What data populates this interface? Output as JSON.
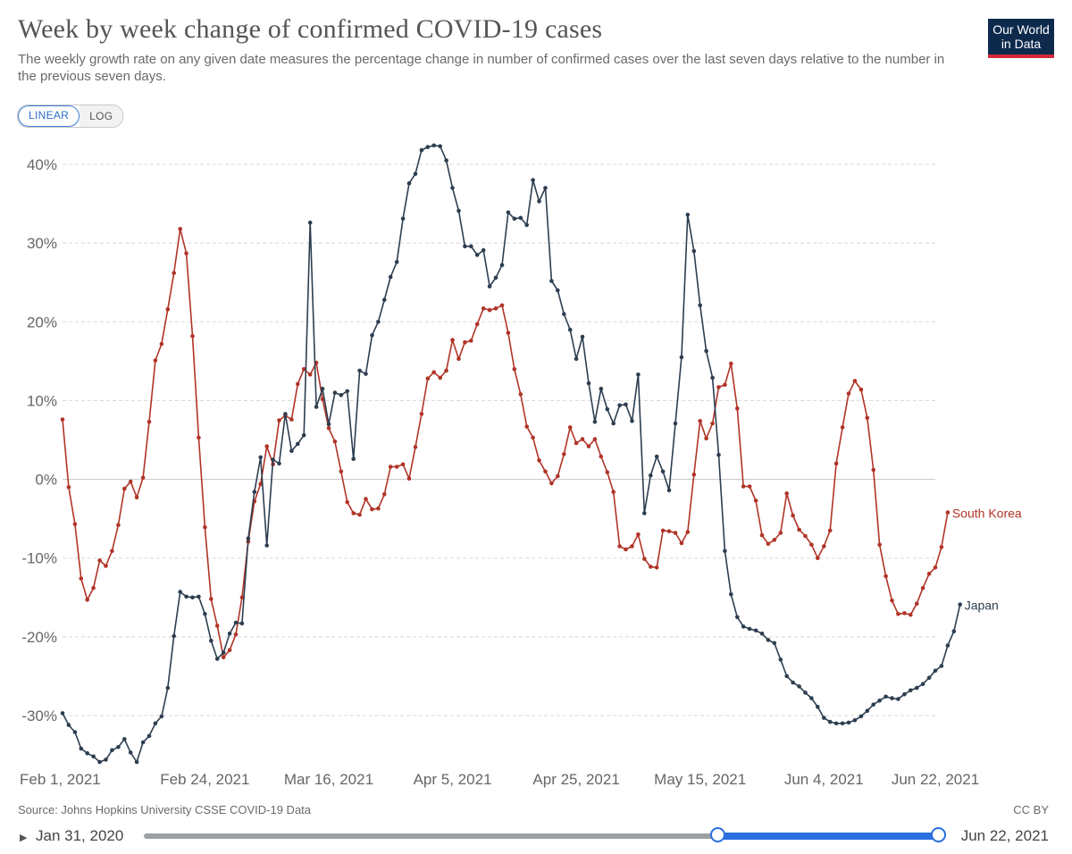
{
  "header": {
    "title": "Week by week change of confirmed COVID-19 cases",
    "subtitle": "The weekly growth rate on any given date measures the percentage change in number of confirmed cases over the last seven days relative to the number in the previous seven days.",
    "logo_line1": "Our World",
    "logo_line2": "in Data"
  },
  "controls": {
    "linear_label": "LINEAR",
    "log_label": "LOG"
  },
  "footer": {
    "source": "Source: Johns Hopkins University CSSE COVID-19 Data",
    "license": "CC BY"
  },
  "timeline": {
    "play_icon": "play-triangle-icon",
    "start_label": "Jan 31, 2020",
    "end_label": "Jun 22, 2021",
    "selection_start_fraction": 0.721,
    "selection_end_fraction": 1.0
  },
  "colors": {
    "japan": "#2d3e50",
    "south_korea": "#b13427",
    "grid": "#d8d8d8",
    "axis_text": "#666666",
    "accent": "#2a6ee0"
  },
  "chart_data": {
    "type": "line",
    "title": "Week by week change of confirmed COVID-19 cases",
    "xlabel": "",
    "ylabel": "",
    "ylim": [
      -36,
      43
    ],
    "yticks": [
      -30,
      -20,
      -10,
      0,
      10,
      20,
      30,
      40
    ],
    "ytick_labels": [
      "-30%",
      "-20%",
      "-10%",
      "0%",
      "10%",
      "20%",
      "30%",
      "40%"
    ],
    "x_start_day": 0,
    "x_end_day": 141,
    "xticks": [
      {
        "day": 0,
        "label": "Feb 1, 2021"
      },
      {
        "day": 23,
        "label": "Feb 24, 2021"
      },
      {
        "day": 43,
        "label": "Mar 16, 2021"
      },
      {
        "day": 63,
        "label": "Apr 5, 2021"
      },
      {
        "day": 83,
        "label": "Apr 25, 2021"
      },
      {
        "day": 103,
        "label": "May 15, 2021"
      },
      {
        "day": 123,
        "label": "Jun 4, 2021"
      },
      {
        "day": 141,
        "label": "Jun 22, 2021"
      }
    ],
    "grid": true,
    "series": [
      {
        "name": "South Korea",
        "color": "#b13427",
        "values": [
          7.6,
          -1.0,
          -5.7,
          -12.6,
          -15.3,
          -13.8,
          -10.3,
          -11.0,
          -9.1,
          -5.8,
          -1.2,
          -0.3,
          -2.3,
          0.2,
          7.3,
          15.1,
          17.2,
          21.6,
          26.2,
          31.8,
          28.7,
          18.2,
          5.3,
          -6.1,
          -15.2,
          -18.6,
          -22.6,
          -21.7,
          -19.7,
          -15.0,
          -7.9,
          -2.8,
          -0.6,
          4.2,
          1.9,
          7.5,
          8.1,
          7.6,
          12.1,
          14.0,
          13.3,
          14.8,
          10.2,
          6.5,
          4.8,
          1.0,
          -2.9,
          -4.3,
          -4.5,
          -2.5,
          -3.8,
          -3.7,
          -1.9,
          1.6,
          1.6,
          1.9,
          0.1,
          4.1,
          8.3,
          12.8,
          13.6,
          12.9,
          13.8,
          17.7,
          15.3,
          17.4,
          17.6,
          19.7,
          21.7,
          21.5,
          21.7,
          22.1,
          18.6,
          14.0,
          10.8,
          6.7,
          5.3,
          2.4,
          1.0,
          -0.5,
          0.4,
          3.2,
          6.6,
          4.6,
          5.1,
          4.2,
          5.1,
          2.9,
          0.9,
          -1.6,
          -8.5,
          -8.9,
          -8.5,
          -7.0,
          -10.1,
          -11.1,
          -11.2,
          -6.5,
          -6.6,
          -6.8,
          -8.1,
          -6.7,
          0.6,
          7.4,
          5.2,
          7.1,
          11.7,
          12.0,
          14.7,
          9.0,
          -0.9,
          -0.9,
          -2.7,
          -7.1,
          -8.2,
          -7.7,
          -6.8,
          -1.8,
          -4.6,
          -6.4,
          -7.2,
          -8.3,
          -10.0,
          -8.5,
          -6.5,
          2.0,
          6.6,
          10.9,
          12.5,
          11.4,
          7.8,
          1.2,
          -8.3,
          -12.3,
          -15.4,
          -17.1,
          -17.0,
          -17.2,
          -15.8,
          -13.8,
          -12.0,
          -11.2,
          -8.6,
          -4.2
        ]
      },
      {
        "name": "Japan",
        "color": "#2d3e50",
        "values": [
          -29.7,
          -31.2,
          -32.1,
          -34.2,
          -34.8,
          -35.2,
          -35.9,
          -35.6,
          -34.4,
          -34.0,
          -33.0,
          -34.7,
          -35.9,
          -33.4,
          -32.6,
          -31.0,
          -30.1,
          -26.5,
          -19.9,
          -14.3,
          -14.9,
          -15.0,
          -14.9,
          -17.1,
          -20.5,
          -22.8,
          -22.0,
          -19.6,
          -18.2,
          -18.3,
          -7.5,
          -1.6,
          2.8,
          -8.4,
          2.5,
          2.0,
          8.3,
          3.6,
          4.5,
          5.6,
          32.6,
          9.2,
          11.5,
          7.0,
          11.0,
          10.7,
          11.2,
          2.6,
          13.8,
          13.4,
          18.3,
          20.0,
          22.8,
          25.7,
          27.6,
          33.1,
          37.6,
          38.8,
          41.8,
          42.2,
          42.4,
          42.3,
          40.5,
          37.0,
          34.1,
          29.6,
          29.6,
          28.5,
          29.1,
          24.5,
          25.6,
          27.2,
          33.9,
          33.1,
          33.2,
          32.3,
          38.0,
          35.3,
          37.0,
          25.2,
          24.0,
          21.0,
          19.0,
          15.3,
          18.1,
          12.2,
          7.3,
          11.5,
          8.9,
          7.1,
          9.4,
          9.5,
          7.4,
          13.3,
          -4.3,
          0.5,
          2.9,
          1.0,
          -1.4,
          7.1,
          15.5,
          33.6,
          29.0,
          22.1,
          16.3,
          12.9,
          3.1,
          -9.1,
          -14.6,
          -17.5,
          -18.7,
          -19.0,
          -19.2,
          -19.6,
          -20.4,
          -20.8,
          -22.9,
          -25.0,
          -25.8,
          -26.3,
          -27.1,
          -27.8,
          -28.9,
          -30.3,
          -30.8,
          -31.0,
          -31.0,
          -30.9,
          -30.6,
          -30.1,
          -29.4,
          -28.6,
          -28.1,
          -27.6,
          -27.8,
          -27.9,
          -27.3,
          -26.8,
          -26.5,
          -26.0,
          -25.2,
          -24.3,
          -23.7,
          -21.1,
          -19.3,
          -15.9
        ]
      }
    ],
    "end_labels": [
      "South Korea",
      "Japan"
    ]
  }
}
